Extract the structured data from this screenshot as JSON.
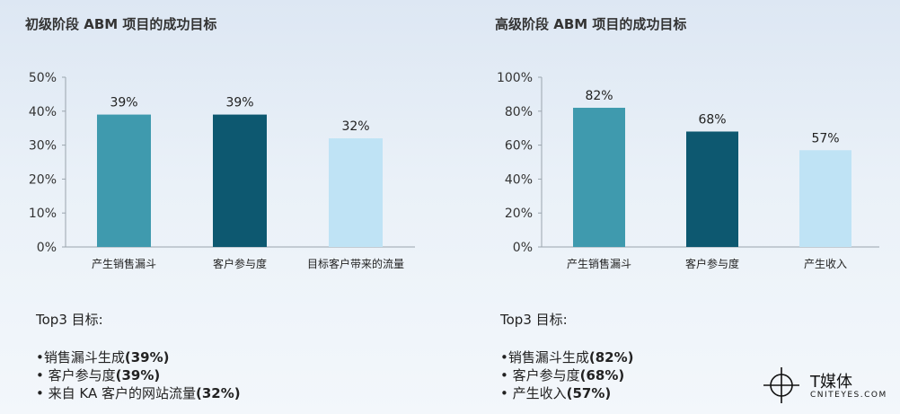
{
  "chart_data": [
    {
      "type": "bar",
      "title": "初级阶段 ABM 项目的成功目标",
      "categories": [
        "产生销售漏斗",
        "客户参与度",
        "目标客户带来的流量"
      ],
      "values": [
        39,
        39,
        32
      ],
      "data_labels": [
        "39%",
        "39%",
        "32%"
      ],
      "colors": [
        "#3f9aae",
        "#0d5870",
        "#bfe3f5"
      ],
      "yticks": [
        "0%",
        "10%",
        "20%",
        "30%",
        "40%",
        "50%"
      ],
      "ylim": [
        0,
        50
      ],
      "xlabel": "",
      "ylabel": "",
      "grid": false
    },
    {
      "type": "bar",
      "title": "高级阶段 ABM 项目的成功目标",
      "categories": [
        "产生销售漏斗",
        "客户参与度",
        "产生收入"
      ],
      "values": [
        82,
        68,
        57
      ],
      "data_labels": [
        "82%",
        "68%",
        "57%"
      ],
      "colors": [
        "#3f9aae",
        "#0d5870",
        "#bfe3f5"
      ],
      "yticks": [
        "0%",
        "20%",
        "40%",
        "60%",
        "80%",
        "100%"
      ],
      "ylim": [
        0,
        100
      ],
      "xlabel": "",
      "ylabel": "",
      "grid": false
    }
  ],
  "left_summary": {
    "heading": "Top3 目标:",
    "items": [
      {
        "label": "•销售漏斗生成",
        "value": "(39%)"
      },
      {
        "label": "• 客户参与度",
        "value": "(39%)"
      },
      {
        "label": "• 来自 KA 客户的网站流量",
        "value": "(32%)"
      }
    ]
  },
  "right_summary": {
    "heading": "Top3 目标:",
    "items": [
      {
        "label": "•销售漏斗生成",
        "value": "(82%)"
      },
      {
        "label": "• 客户参与度",
        "value": "(68%)"
      },
      {
        "label": "• 产生收入",
        "value": "(57%)"
      }
    ]
  },
  "logo": {
    "name": "T媒体",
    "domain": "CNITEYES.COM",
    "icon": "t-media-logo-icon"
  }
}
